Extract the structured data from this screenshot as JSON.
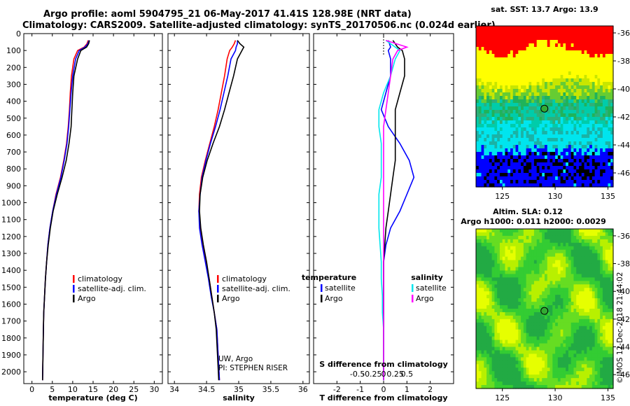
{
  "title_line1": "Argo profile: aoml 5904795_21 06-May-2017 41.41S 128.98E (NRT data)",
  "title_line2": "Climatology: CARS2009. Satellite-adjusted climatology: synTS_20170506.nc (0.024d earlier)",
  "sst_title": "sat. SST: 13.7 Argo: 13.9",
  "sla_title1": "Altim. SLA: 0.12",
  "sla_title2": "Argo h1000: 0.011 h2000: 0.0029",
  "credit": "UW, Argo",
  "pi": "PI: STEPHEN RISER",
  "stamp": "©IMOS 12-Dec-2018 21:44:02",
  "colors": {
    "climatology": "#ff0000",
    "satellite": "#0000ff",
    "argo": "#000000",
    "sal_satellite": "#00e5ee",
    "sal_argo": "#ff00ff"
  },
  "chart_data": [
    {
      "type": "line",
      "name": "temperature",
      "xlabel": "temperature (deg C)",
      "ylabel": "",
      "xlim": [
        -2,
        32
      ],
      "ylim": [
        2070,
        0
      ],
      "xticks": [
        0,
        5,
        10,
        15,
        20,
        25,
        30
      ],
      "yticks": [
        0,
        100,
        200,
        300,
        400,
        500,
        600,
        700,
        800,
        900,
        1000,
        1100,
        1200,
        1300,
        1400,
        1500,
        1600,
        1700,
        1800,
        1900,
        2000
      ],
      "legend": {
        "placement": "lower-center",
        "entries": [
          "climatology",
          "satellite-adj. clim.",
          "Argo"
        ]
      },
      "series": [
        {
          "name": "climatology",
          "color": "#ff0000",
          "x": [
            13.8,
            13.5,
            12.8,
            11.2,
            10.3,
            9.7,
            9.4,
            9.2,
            8.9,
            8.5,
            7.8,
            7.0,
            5.9,
            5.1,
            4.4,
            3.9,
            3.6,
            3.3,
            3.1,
            2.9,
            2.8,
            2.7,
            2.6
          ],
          "y": [
            40,
            60,
            80,
            100,
            150,
            250,
            350,
            450,
            550,
            650,
            750,
            850,
            950,
            1050,
            1150,
            1250,
            1350,
            1450,
            1550,
            1650,
            1750,
            1900,
            2050
          ]
        },
        {
          "name": "satellite-adj. clim.",
          "color": "#0000ff",
          "x": [
            14.0,
            13.7,
            13.0,
            11.6,
            10.7,
            10.0,
            9.6,
            9.3,
            9.0,
            8.6,
            7.9,
            7.1,
            6.0,
            5.1,
            4.4,
            3.9,
            3.6,
            3.3,
            3.1,
            2.9,
            2.8,
            2.7,
            2.6
          ],
          "y": [
            40,
            60,
            80,
            100,
            150,
            250,
            350,
            450,
            550,
            650,
            750,
            850,
            950,
            1050,
            1150,
            1250,
            1350,
            1450,
            1550,
            1650,
            1750,
            1900,
            2050
          ]
        },
        {
          "name": "Argo",
          "color": "#000000",
          "x": [
            14.1,
            13.9,
            13.4,
            12.0,
            11.2,
            10.3,
            10.0,
            9.8,
            9.6,
            9.1,
            8.4,
            7.4,
            6.2,
            5.2,
            4.5,
            4.0,
            3.6,
            3.3,
            3.1,
            2.9,
            2.8,
            2.7,
            2.6
          ],
          "y": [
            40,
            60,
            80,
            100,
            150,
            250,
            350,
            450,
            550,
            650,
            750,
            850,
            950,
            1050,
            1150,
            1250,
            1350,
            1450,
            1550,
            1650,
            1750,
            1900,
            2050
          ]
        }
      ]
    },
    {
      "type": "line",
      "name": "salinity",
      "xlabel": "salinity",
      "ylabel": "",
      "xlim": [
        33.9,
        36.1
      ],
      "ylim": [
        2070,
        0
      ],
      "xticks": [
        34,
        34.5,
        35,
        35.5,
        36
      ],
      "legend": {
        "placement": "lower-center",
        "entries": [
          "climatology",
          "satellite-adj. clim.",
          "Argo"
        ]
      },
      "series": [
        {
          "name": "climatology",
          "color": "#ff0000",
          "x": [
            34.95,
            34.93,
            34.9,
            34.86,
            34.82,
            34.78,
            34.73,
            34.68,
            34.62,
            34.55,
            34.48,
            34.42,
            34.39,
            34.38,
            34.4,
            34.44,
            34.49,
            34.54,
            34.58,
            34.62,
            34.66,
            34.68,
            34.7
          ],
          "y": [
            40,
            60,
            80,
            100,
            150,
            250,
            350,
            450,
            550,
            650,
            750,
            850,
            950,
            1050,
            1150,
            1250,
            1350,
            1450,
            1550,
            1650,
            1750,
            1900,
            2050
          ]
        },
        {
          "name": "satellite-adj. clim.",
          "color": "#0000ff",
          "x": [
            34.98,
            34.98,
            34.96,
            34.95,
            34.88,
            34.83,
            34.77,
            34.71,
            34.64,
            34.56,
            34.49,
            34.43,
            34.4,
            34.38,
            34.39,
            34.43,
            34.48,
            34.53,
            34.57,
            34.62,
            34.66,
            34.68,
            34.7
          ],
          "y": [
            40,
            60,
            80,
            100,
            150,
            250,
            350,
            450,
            550,
            650,
            750,
            850,
            950,
            1050,
            1150,
            1250,
            1350,
            1450,
            1550,
            1650,
            1750,
            1900,
            2050
          ]
        },
        {
          "name": "Argo",
          "color": "#000000",
          "x": [
            34.98,
            35.02,
            35.08,
            35.05,
            34.98,
            34.92,
            34.85,
            34.78,
            34.7,
            34.6,
            34.51,
            34.44,
            34.4,
            34.39,
            34.41,
            34.45,
            34.5,
            34.54,
            34.58,
            34.62,
            34.65,
            34.67,
            34.69
          ],
          "y": [
            40,
            60,
            80,
            100,
            150,
            250,
            350,
            450,
            550,
            650,
            750,
            850,
            950,
            1050,
            1150,
            1250,
            1350,
            1450,
            1550,
            1650,
            1750,
            1900,
            2050
          ]
        }
      ]
    },
    {
      "type": "line",
      "name": "difference",
      "xlabel": "T difference from climatology",
      "x2label": "S difference from climatology",
      "xlim": [
        -3,
        3
      ],
      "ylim": [
        2070,
        0
      ],
      "xticks": [
        -2,
        -1,
        0,
        1,
        2
      ],
      "x2ticks": [
        "-0.5",
        "-0.25",
        "0",
        "0.25",
        "0.5"
      ],
      "legend": {
        "placement": "lower-center",
        "groups": [
          {
            "title": "temperature",
            "entries": [
              "satellite",
              "Argo"
            ]
          },
          {
            "title": "salinity",
            "entries": [
              "satellite",
              "Argo"
            ]
          }
        ]
      },
      "series": [
        {
          "name": "temperature satellite",
          "color": "#0000ff",
          "x": [
            0.2,
            0.3,
            0.2,
            0.3,
            0.3,
            0.1,
            -0.1,
            0.2,
            0.7,
            1.1,
            1.3,
            1.0,
            0.7,
            0.3,
            0.1,
            0.0,
            0.0,
            0.0,
            0.0,
            0.0,
            0.0,
            0.0
          ],
          "y": [
            40,
            80,
            100,
            150,
            250,
            350,
            450,
            550,
            650,
            750,
            850,
            950,
            1050,
            1150,
            1250,
            1350,
            1450,
            1550,
            1650,
            1750,
            1900,
            2050
          ]
        },
        {
          "name": "temperature Argo",
          "color": "#000000",
          "x": [
            0.4,
            0.6,
            0.8,
            0.9,
            0.9,
            0.7,
            0.5,
            0.5,
            0.5,
            0.5,
            0.4,
            0.3,
            0.2,
            0.1,
            0.05,
            0.0,
            0.0,
            0.0,
            0.0,
            0.0,
            0.0,
            0.0
          ],
          "y": [
            40,
            80,
            100,
            150,
            250,
            350,
            450,
            550,
            650,
            750,
            850,
            950,
            1050,
            1150,
            1250,
            1350,
            1450,
            1550,
            1650,
            1750,
            1900,
            2050
          ]
        },
        {
          "name": "salinity satellite",
          "color": "#00e5ee",
          "x": [
            0.1,
            0.5,
            0.7,
            0.5,
            0.3,
            0.0,
            -0.2,
            -0.2,
            -0.1,
            -0.1,
            -0.1,
            -0.2,
            -0.2,
            -0.2,
            -0.15,
            -0.1,
            -0.1,
            -0.05,
            -0.05,
            0.0,
            0.0,
            0.0
          ],
          "y": [
            40,
            80,
            100,
            150,
            250,
            350,
            450,
            550,
            650,
            750,
            850,
            950,
            1050,
            1150,
            1250,
            1350,
            1450,
            1550,
            1650,
            1750,
            1900,
            2050
          ]
        },
        {
          "name": "salinity Argo",
          "color": "#ff00ff",
          "x": [
            0.1,
            1.0,
            0.6,
            0.4,
            0.3,
            0.2,
            0.1,
            0.0,
            0.0,
            0.0,
            0.0,
            0.0,
            0.0,
            0.0,
            0.0,
            0.0,
            0.0,
            0.0,
            0.0,
            0.0,
            0.0,
            0.0
          ],
          "y": [
            40,
            80,
            100,
            150,
            250,
            350,
            450,
            550,
            650,
            750,
            850,
            950,
            1050,
            1150,
            1250,
            1350,
            1450,
            1550,
            1650,
            1750,
            1900,
            2050
          ]
        }
      ]
    },
    {
      "type": "heatmap",
      "name": "sat-sst-map",
      "title": "sat. SST: 13.7 Argo: 13.9",
      "xlim": [
        122.5,
        135.5
      ],
      "ylim": [
        -47,
        -35.5
      ],
      "xticks": [
        125,
        130,
        135
      ],
      "yticks": [
        -36,
        -38,
        -40,
        -42,
        -44,
        -46
      ],
      "marker": {
        "lon": 128.98,
        "lat": -41.41
      }
    },
    {
      "type": "heatmap",
      "name": "altim-sla-map",
      "title": "Altim. SLA: 0.12",
      "xlim": [
        122.5,
        135.5
      ],
      "ylim": [
        -47,
        -35.5
      ],
      "xticks": [
        125,
        130,
        135
      ],
      "yticks": [
        -36,
        -38,
        -40,
        -42,
        -44,
        -46
      ],
      "marker": {
        "lon": 128.98,
        "lat": -41.41
      }
    }
  ]
}
